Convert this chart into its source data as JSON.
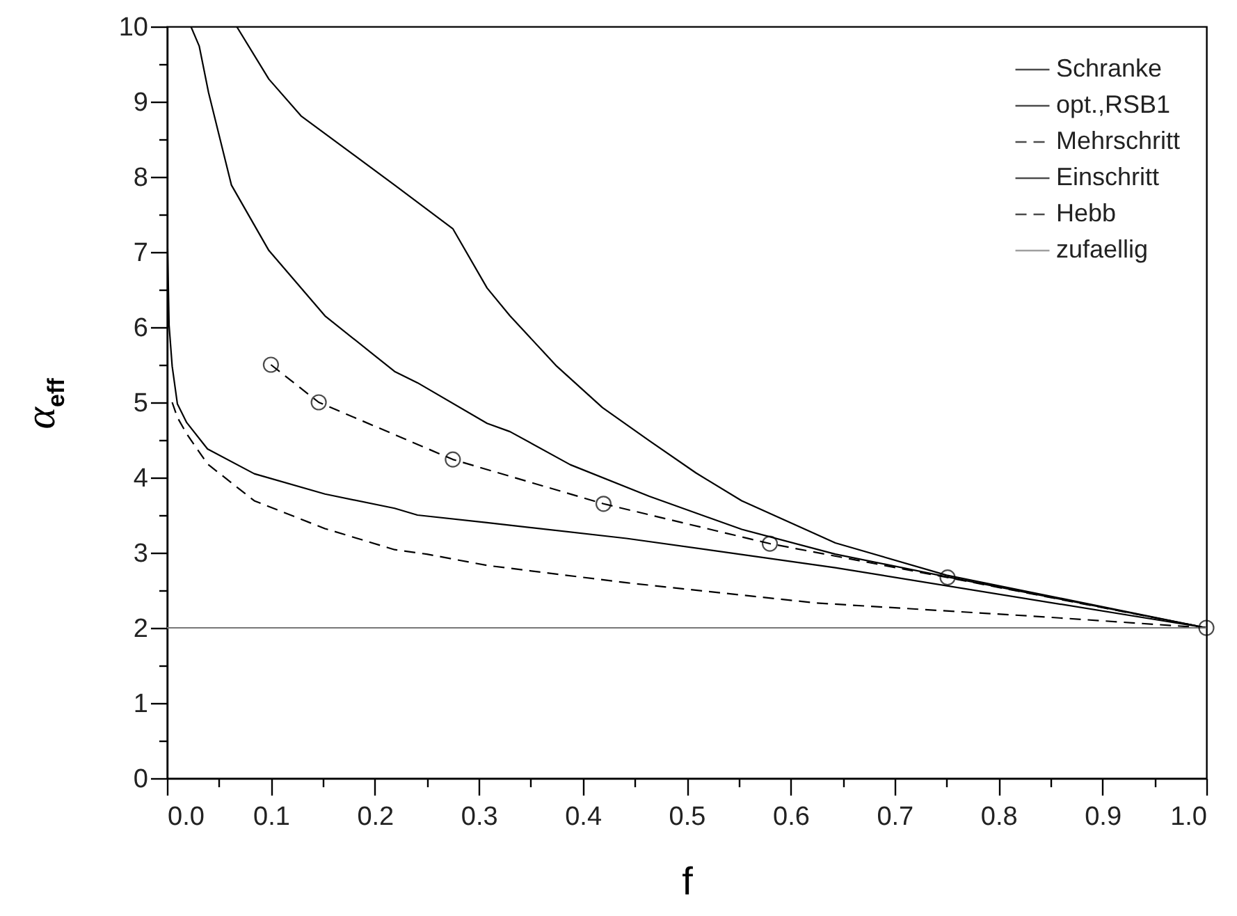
{
  "chart_data": {
    "type": "line",
    "xlabel": "f",
    "ylabel": "α$_{eff}$",
    "xlim": [
      0,
      1
    ],
    "ylim": [
      0,
      10
    ],
    "xticks": [
      {
        "value": 0,
        "label": "0.0"
      },
      {
        "value": 0.05,
        "label": null
      },
      {
        "value": 0.1,
        "label": "0.1"
      },
      {
        "value": 0.15,
        "label": null
      },
      {
        "value": 0.2,
        "label": "0.2"
      },
      {
        "value": 0.25,
        "label": null
      },
      {
        "value": 0.3,
        "label": "0.3"
      },
      {
        "value": 0.35,
        "label": null
      },
      {
        "value": 0.4,
        "label": "0.4"
      },
      {
        "value": 0.45,
        "label": null
      },
      {
        "value": 0.5,
        "label": "0.5"
      },
      {
        "value": 0.55,
        "label": null
      },
      {
        "value": 0.6,
        "label": "0.6"
      },
      {
        "value": 0.65,
        "label": null
      },
      {
        "value": 0.7,
        "label": "0.7"
      },
      {
        "value": 0.75,
        "label": null
      },
      {
        "value": 0.8,
        "label": "0.8"
      },
      {
        "value": 0.85,
        "label": null
      },
      {
        "value": 0.9,
        "label": "0.9"
      },
      {
        "value": 0.95,
        "label": null
      },
      {
        "value": 1,
        "label": "1.0"
      }
    ],
    "yticks": [
      0,
      {
        "value": 0.5,
        "label": null
      },
      1,
      {
        "value": 1.5,
        "label": null
      },
      2,
      {
        "value": 2.5,
        "label": null
      },
      3,
      {
        "value": 3.5,
        "label": null
      },
      4,
      {
        "value": 4.5,
        "label": null
      },
      5,
      {
        "value": 5.5,
        "label": null
      },
      6,
      {
        "value": 6.5,
        "label": null
      },
      7,
      {
        "value": 7.5,
        "label": null
      },
      8,
      {
        "value": 8.5,
        "label": null
      },
      9,
      {
        "value": 9.5,
        "label": null
      },
      10
    ],
    "legend": "top right",
    "grid": false,
    "series": [
      {
        "name": "Schranke",
        "color": "#000000",
        "line_style": "solid",
        "marker": "none",
        "x": [
          0.067,
          0.098,
          0.129,
          0.219,
          0.275,
          0.308,
          0.33,
          0.375,
          0.419,
          0.464,
          0.509,
          0.553,
          0.643,
          0.75,
          1.0
        ],
        "values": [
          10,
          9.3,
          8.81,
          7.89,
          7.31,
          6.52,
          6.15,
          5.48,
          4.93,
          4.49,
          4.06,
          3.69,
          3.13,
          2.7,
          2.0
        ]
      },
      {
        "name": "opt.,RSB1",
        "color": "#000000",
        "line_style": "solid",
        "marker": "none",
        "x": [
          0.023,
          0.031,
          0.04,
          0.062,
          0.098,
          0.152,
          0.219,
          0.241,
          0.308,
          0.33,
          0.388,
          0.464,
          0.553,
          0.643,
          0.75,
          1.0
        ],
        "values": [
          10,
          9.74,
          9.12,
          7.89,
          7.02,
          6.15,
          5.41,
          5.26,
          4.72,
          4.61,
          4.17,
          3.75,
          3.31,
          2.98,
          2.68,
          2.0
        ]
      },
      {
        "name": "Mehrschritt",
        "color": "#000000",
        "line_style": "dashed",
        "marker": "circle",
        "x": [
          0.1,
          0.146,
          0.275,
          0.42,
          0.58,
          0.751,
          1.0
        ],
        "values": [
          5.5,
          5.0,
          4.24,
          3.65,
          3.12,
          2.67,
          2.0
        ]
      },
      {
        "name": "Einschritt",
        "color": "#000000",
        "line_style": "solid",
        "marker": "none",
        "x": [
          0,
          0.002,
          0.005,
          0.01,
          0.019,
          0.039,
          0.084,
          0.152,
          0.219,
          0.241,
          0.308,
          0.442,
          0.643,
          1.0
        ],
        "values": [
          7.5,
          6.03,
          5.48,
          4.98,
          4.73,
          4.38,
          4.05,
          3.78,
          3.59,
          3.5,
          3.4,
          3.19,
          2.8,
          2.0
        ]
      },
      {
        "name": "Hebb",
        "color": "#000000",
        "line_style": "dashed",
        "marker": "none",
        "x": [
          0.005,
          0.01,
          0.019,
          0.039,
          0.084,
          0.152,
          0.219,
          0.25,
          0.308,
          0.442,
          0.625,
          0.839,
          1.0
        ],
        "values": [
          5.0,
          4.8,
          4.58,
          4.18,
          3.69,
          3.32,
          3.04,
          2.98,
          2.83,
          2.6,
          2.33,
          2.15,
          2.0
        ]
      },
      {
        "name": "zufaellig",
        "color": "#777777",
        "line_style": "solid",
        "marker": "none",
        "x": [
          0,
          1
        ],
        "values": [
          2,
          2
        ]
      }
    ]
  }
}
